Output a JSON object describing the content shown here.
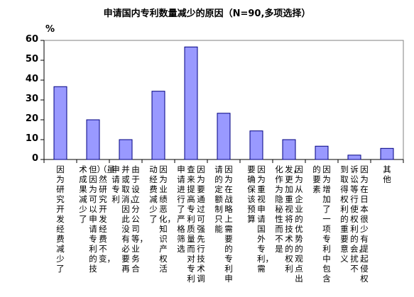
{
  "chart_data": {
    "type": "bar",
    "title": "申请国内专利数量减少的原因（N=90,多项选择）",
    "ylabel": "%",
    "ylim": [
      0,
      60
    ],
    "yticks": [
      "0",
      "10",
      "20",
      "30",
      "40",
      "50",
      "60"
    ],
    "grid": false,
    "legend": "none",
    "bar_color": "#9999ff",
    "bar_stroke": "#000080",
    "plot_background": "#ffffff",
    "categories": [
      "因为研究开发经费减少了",
      "（虽然研究开发经费不变，但）因为可以申请专利的技术成果减少了",
      "由于设立分公司等，业务合并或取消，因此没有必要再申请专利",
      "因为业绩恶化，知识产权活动经费减少了",
      "因为要通过可强先行技术调查来提高专利质量而对专利申请进行了严格筛选",
      "因为在战略上需要的专利申请的定额制只能",
      "因为重视申请国外专利，需要确保该预算",
      "因为从企业的优势的观点出发，更加重视将技术的权利化作为隐秘性而不是",
      "因为增加了一项专利中包含的要素",
      "因为在日本很少有提起侵权诉讼等行使权利的会，扰不到取得权利的重要意义",
      "其他"
    ],
    "values": [
      36.7,
      20,
      10,
      34.4,
      56.7,
      23.3,
      14.4,
      10,
      6.7,
      2.2,
      5.6
    ]
  }
}
